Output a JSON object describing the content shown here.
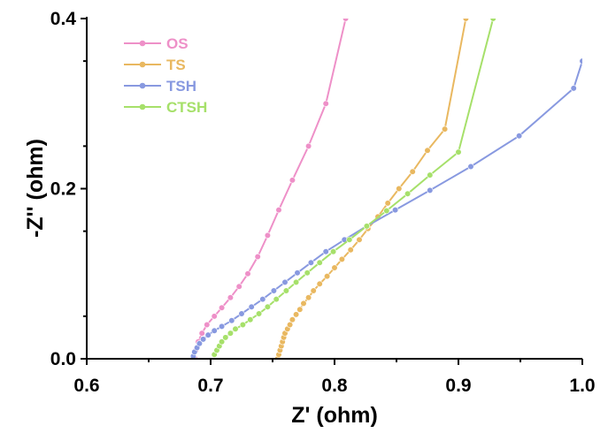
{
  "chart_data": {
    "type": "scatter",
    "title": "",
    "xlabel": "Z' (ohm)",
    "ylabel": "-Z'' (ohm)",
    "xlim": [
      0.6,
      1.0
    ],
    "ylim": [
      0.0,
      0.4
    ],
    "x_ticks": [
      "0.6",
      "0.7",
      "0.8",
      "0.9",
      "1.0"
    ],
    "y_ticks": [
      "0.0",
      "0.2",
      "0.4"
    ],
    "x_tick_values": [
      0.6,
      0.7,
      0.8,
      0.9,
      1.0
    ],
    "y_tick_values": [
      0.0,
      0.2,
      0.4
    ],
    "grid": false,
    "legend_position": "top-left",
    "series": [
      {
        "name": "OS",
        "color": "#ee90c8",
        "x": [
          0.687,
          0.688,
          0.69,
          0.693,
          0.697,
          0.703,
          0.709,
          0.716,
          0.723,
          0.73,
          0.738,
          0.746,
          0.755,
          0.766,
          0.779,
          0.793,
          0.809
        ],
        "y": [
          0.001,
          0.01,
          0.02,
          0.03,
          0.04,
          0.05,
          0.06,
          0.072,
          0.085,
          0.1,
          0.12,
          0.145,
          0.175,
          0.21,
          0.25,
          0.3,
          0.4
        ]
      },
      {
        "name": "TS",
        "color": "#e9b860",
        "x": [
          0.754,
          0.755,
          0.756,
          0.757,
          0.758,
          0.759,
          0.76,
          0.762,
          0.764,
          0.766,
          0.769,
          0.772,
          0.775,
          0.779,
          0.783,
          0.788,
          0.794,
          0.8,
          0.806,
          0.813,
          0.82,
          0.827,
          0.835,
          0.843,
          0.852,
          0.863,
          0.875,
          0.889,
          0.906
        ],
        "y": [
          0.0,
          0.005,
          0.01,
          0.015,
          0.02,
          0.025,
          0.03,
          0.035,
          0.04,
          0.046,
          0.052,
          0.058,
          0.065,
          0.072,
          0.08,
          0.088,
          0.097,
          0.107,
          0.117,
          0.128,
          0.14,
          0.153,
          0.167,
          0.183,
          0.2,
          0.22,
          0.245,
          0.27,
          0.4
        ]
      },
      {
        "name": "TSH",
        "color": "#8899e0",
        "x": [
          0.686,
          0.687,
          0.689,
          0.691,
          0.694,
          0.698,
          0.703,
          0.709,
          0.717,
          0.725,
          0.733,
          0.742,
          0.751,
          0.76,
          0.77,
          0.781,
          0.793,
          0.808,
          0.826,
          0.849,
          0.877,
          0.91,
          0.949,
          0.993,
          1.0
        ],
        "y": [
          0.003,
          0.008,
          0.013,
          0.018,
          0.023,
          0.028,
          0.033,
          0.038,
          0.045,
          0.053,
          0.061,
          0.07,
          0.08,
          0.09,
          0.101,
          0.113,
          0.126,
          0.14,
          0.156,
          0.175,
          0.198,
          0.226,
          0.262,
          0.318,
          0.35
        ]
      },
      {
        "name": "CTSH",
        "color": "#a6e06a",
        "x": [
          0.703,
          0.705,
          0.707,
          0.709,
          0.712,
          0.716,
          0.72,
          0.726,
          0.732,
          0.739,
          0.746,
          0.753,
          0.761,
          0.769,
          0.778,
          0.788,
          0.799,
          0.812,
          0.826,
          0.842,
          0.859,
          0.877,
          0.9,
          0.928
        ],
        "y": [
          0.005,
          0.01,
          0.015,
          0.02,
          0.025,
          0.03,
          0.035,
          0.04,
          0.046,
          0.053,
          0.061,
          0.07,
          0.08,
          0.09,
          0.101,
          0.113,
          0.126,
          0.14,
          0.156,
          0.174,
          0.194,
          0.216,
          0.243,
          0.4
        ]
      }
    ]
  }
}
